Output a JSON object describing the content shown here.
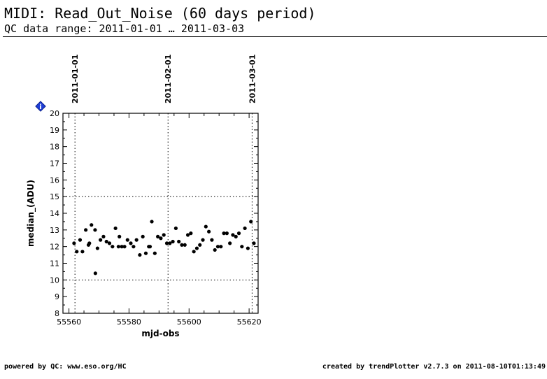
{
  "header": {
    "title": "MIDI: Read_Out_Noise (60 days period)",
    "subtitle": "QC data range: 2011-01-01 … 2011-03-03"
  },
  "footer": {
    "left": "powered by QC: www.eso.org/HC",
    "right": "created by trendPlotter v2.7.3 on 2011-08-10T01:13:49"
  },
  "chart_data": {
    "type": "scatter",
    "title": "",
    "xlabel": "mjd-obs",
    "ylabel": "median_(ADU)",
    "xlim": [
      55558,
      55623
    ],
    "ylim": [
      8,
      20
    ],
    "xticks": [
      55560,
      55580,
      55600,
      55620
    ],
    "yticks": [
      8,
      9,
      10,
      11,
      12,
      13,
      14,
      15,
      16,
      17,
      18,
      19,
      20
    ],
    "date_markers": [
      {
        "label": "2011-01-01",
        "x": 55562
      },
      {
        "label": "2011-02-01",
        "x": 55593
      },
      {
        "label": "2011-03-01",
        "x": 55621
      }
    ],
    "reference_lines": [
      10,
      15
    ],
    "info_icon": "info-diamond-icon",
    "marker_color": "#000000",
    "points": {
      "x": [
        55561.7,
        55562.6,
        55563.7,
        55564.5,
        55565.6,
        55566.5,
        55567.5,
        55568.7,
        55569.5,
        55570.5,
        55571.5,
        55572.5,
        55573.5,
        55574.5,
        55575.5,
        55576.5,
        55577.6,
        55578.5,
        55579.5,
        55580.6,
        55581.5,
        55582.5,
        55583.6,
        55584.6,
        55585.6,
        55586.6,
        55587.6,
        55588.6,
        55589.6,
        55590.6,
        55591.6,
        55592.6,
        55593.6,
        55594.6,
        55595.6,
        55596.6,
        55597.6,
        55598.6,
        55599.6,
        55600.6,
        55601.6,
        55602.6,
        55603.6,
        55604.6,
        55605.6,
        55606.6,
        55607.6,
        55608.6,
        55609.6,
        55610.6,
        55611.6,
        55612.6,
        55613.6,
        55614.6,
        55615.6,
        55616.6,
        55617.6,
        55618.6,
        55619.6,
        55620.6,
        55621.6,
        55566.8,
        55568.8,
        55576.8,
        55587.0
      ],
      "y": [
        12.2,
        11.7,
        12.4,
        11.7,
        13.0,
        12.1,
        13.3,
        13.0,
        11.9,
        12.4,
        12.6,
        12.3,
        12.2,
        12.0,
        13.1,
        12.0,
        12.0,
        12.0,
        12.4,
        12.2,
        12.0,
        12.4,
        11.5,
        12.6,
        11.6,
        12.0,
        13.5,
        11.6,
        12.6,
        12.5,
        12.7,
        12.2,
        12.2,
        12.3,
        13.1,
        12.3,
        12.1,
        12.1,
        12.7,
        12.8,
        11.7,
        11.9,
        12.1,
        12.4,
        13.2,
        12.9,
        12.4,
        11.8,
        12.0,
        12.0,
        12.8,
        12.8,
        12.2,
        12.7,
        12.6,
        12.8,
        12.0,
        13.1,
        11.9,
        13.5,
        12.2,
        12.2,
        10.4,
        12.6,
        12.0
      ]
    }
  }
}
